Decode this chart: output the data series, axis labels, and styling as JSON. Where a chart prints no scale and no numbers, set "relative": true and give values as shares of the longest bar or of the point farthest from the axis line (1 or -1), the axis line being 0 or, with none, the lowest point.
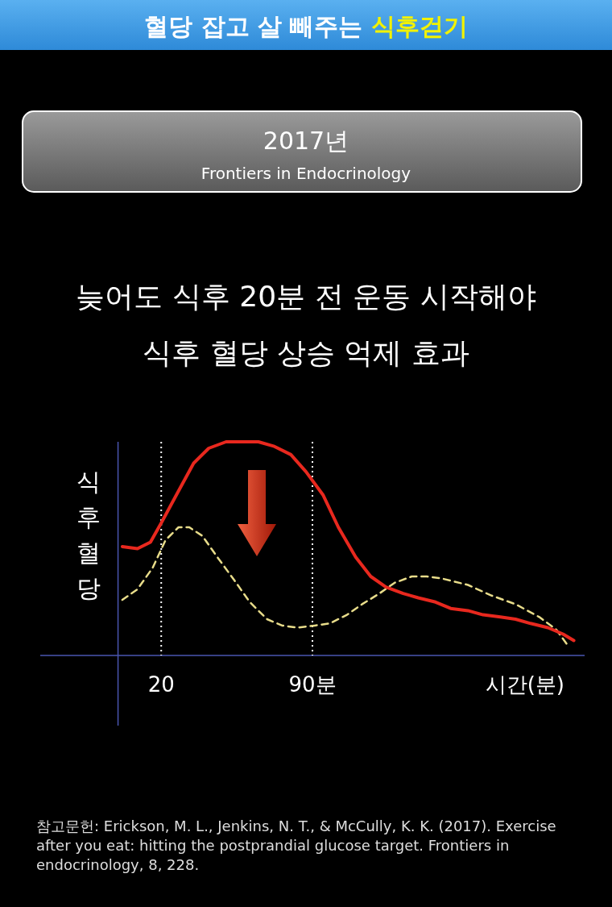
{
  "chart_data": {
    "type": "line",
    "title": "혈당 잡고 살 빼주는 식후걷기",
    "subtitle": "늦어도 식후 20분 전 운동 시작해야\n식후 혈당 상승 억제 효과",
    "xlabel": "시간(분)",
    "ylabel": "식후혈당",
    "relative": true,
    "xlim": [
      -36,
      216
    ],
    "xticks": [
      {
        "value": 20,
        "label": "20"
      },
      {
        "value": 90,
        "label": "90분"
      }
    ],
    "ref_lines": [
      {
        "axis": "x",
        "value": 0,
        "color": "#4a56b0",
        "line_style": "solid"
      },
      {
        "axis": "x",
        "value": 20,
        "color": "#ffffff",
        "line_style": "dotted"
      },
      {
        "axis": "x",
        "value": 90,
        "color": "#ffffff",
        "line_style": "dotted"
      }
    ],
    "annotations": [
      "2017년",
      "Frontiers in Endocrinology",
      "참고문헌: Erickson, M. L., Jenkins, N. T., & McCully, K. K. (2017). Exercise after you eat: hitting the postprandial glucose target. Frontiers in endocrinology, 8, 228."
    ],
    "series": [
      {
        "color": "#e8281e",
        "line_style": "solid",
        "x": [
          2,
          9,
          15,
          20,
          28,
          35,
          42,
          50,
          57,
          65,
          72,
          80,
          87,
          95,
          102,
          110,
          117,
          124,
          132,
          139,
          147,
          154,
          162,
          169,
          177,
          184,
          191,
          199,
          206,
          211
        ],
        "values": [
          0.51,
          0.5,
          0.53,
          0.62,
          0.77,
          0.9,
          0.97,
          1.0,
          1.0,
          1.0,
          0.98,
          0.94,
          0.86,
          0.75,
          0.6,
          0.46,
          0.37,
          0.32,
          0.29,
          0.27,
          0.25,
          0.22,
          0.21,
          0.19,
          0.18,
          0.17,
          0.15,
          0.13,
          0.1,
          0.07
        ]
      },
      {
        "color": "#e8dc8a",
        "line_style": "dashed",
        "x": [
          2,
          9,
          16,
          22,
          28,
          33,
          39,
          46,
          54,
          61,
          69,
          76,
          83,
          91,
          98,
          106,
          113,
          121,
          128,
          136,
          143,
          150,
          162,
          173,
          184,
          195,
          203,
          208
        ],
        "values": [
          0.26,
          0.31,
          0.41,
          0.54,
          0.6,
          0.6,
          0.56,
          0.46,
          0.35,
          0.25,
          0.17,
          0.14,
          0.13,
          0.14,
          0.15,
          0.19,
          0.24,
          0.29,
          0.34,
          0.37,
          0.37,
          0.36,
          0.33,
          0.28,
          0.24,
          0.18,
          0.12,
          0.05
        ]
      }
    ]
  }
}
